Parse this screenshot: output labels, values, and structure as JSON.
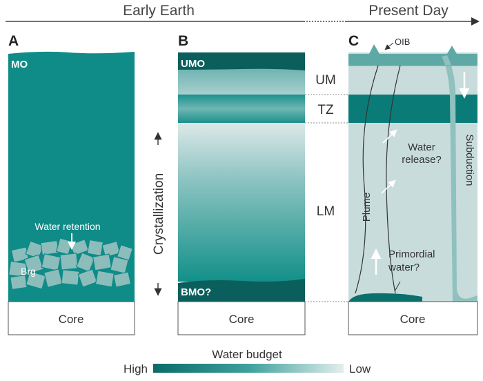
{
  "timeline": {
    "early": "Early Earth",
    "present": "Present Day"
  },
  "panels": {
    "a": {
      "letter": "A",
      "mo": "MO",
      "water_retention": "Water retention",
      "brg": "Brg",
      "core": "Core"
    },
    "b": {
      "letter": "B",
      "umo": "UMO",
      "bmo": "BMO?",
      "core": "Core",
      "crystallization": "Crystallization"
    },
    "layers": {
      "um": "UM",
      "tz": "TZ",
      "lm": "LM"
    },
    "c": {
      "letter": "C",
      "oib": "OIB",
      "plume": "Plume",
      "subduction": "Subduction",
      "water_release_1": "Water",
      "water_release_2": "release?",
      "primordial_1": "Primordial",
      "primordial_2": "water?",
      "core": "Core"
    }
  },
  "legend": {
    "title": "Water budget",
    "high": "High",
    "low": "Low"
  },
  "colors": {
    "teal": "#0f8b88",
    "dark_teal": "#0a5e5c",
    "light": "#dce9e8",
    "mantle_c": "#c8dcdb",
    "slab": "#5ea9a6"
  }
}
